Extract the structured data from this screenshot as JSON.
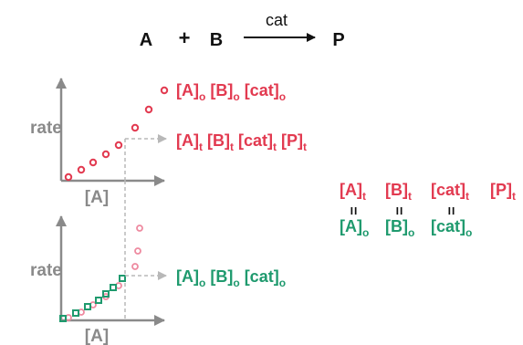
{
  "colors": {
    "red": "#e23a50",
    "green": "#1f9a6e",
    "pink": "#ee8aa0",
    "axis": "#8a8a8a",
    "dash": "#b8b8b8",
    "black": "#111111"
  },
  "reaction": {
    "a": "A",
    "plus": "+",
    "b": "B",
    "catalyst": "cat",
    "product": "P"
  },
  "top_plot": {
    "y_label": "rate",
    "x_label": "[A]",
    "initial_label": [
      "[A]",
      "o",
      " [B]",
      "o",
      " [cat]",
      "o"
    ],
    "time_label": [
      "[A]",
      "t",
      " [B]",
      "t",
      " [cat]",
      "t",
      " [P]",
      "t"
    ]
  },
  "bottom_plot": {
    "y_label": "rate",
    "x_label": "[A]",
    "label": [
      "[A]",
      "o",
      " [B]",
      "o",
      " [cat]",
      "o"
    ]
  },
  "equalities": {
    "top": [
      [
        "[A]",
        "t"
      ],
      [
        "[B]",
        "t"
      ],
      [
        "[cat]",
        "t"
      ],
      [
        "[P]",
        "t"
      ]
    ],
    "equals_sign": "=",
    "bottom": [
      [
        "[A]",
        "o"
      ],
      [
        "[B]",
        "o"
      ],
      [
        "[cat]",
        "o"
      ]
    ]
  }
}
